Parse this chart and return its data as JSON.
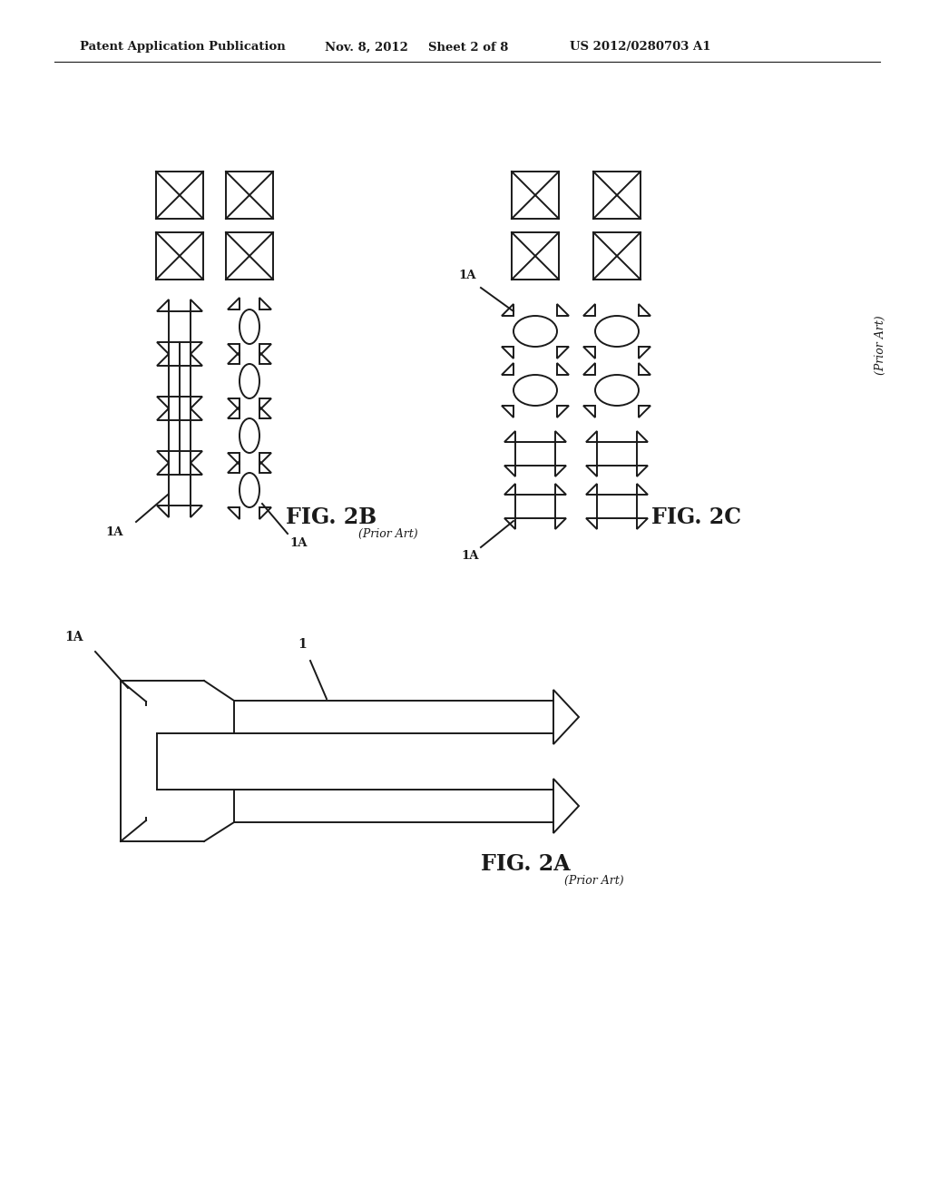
{
  "bg_color": "#ffffff",
  "header_text": "Patent Application Publication",
  "header_date": "Nov. 8, 2012",
  "header_sheet": "Sheet 2 of 8",
  "header_patent": "US 2012/0280703 A1",
  "fig2a_label": "FIG. 2A",
  "fig2b_label": "FIG. 2B",
  "fig2c_label": "FIG. 2C",
  "prior_art": "(Prior Art)",
  "label_1A": "1A",
  "label_1": "1",
  "line_color": "#1a1a1a",
  "line_width": 1.4
}
